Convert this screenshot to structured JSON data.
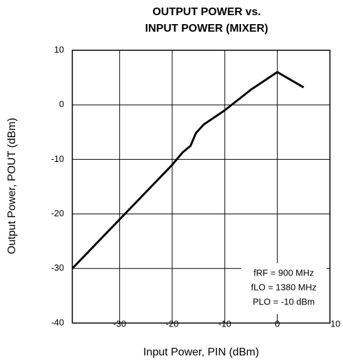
{
  "chart_data": {
    "type": "line",
    "title": [
      "OUTPUT POWER vs.",
      "INPUT POWER (MIXER)"
    ],
    "xlabel": "Input Power, PIN (dBm)",
    "ylabel": "Output Power, POUT (dBm)",
    "annotations": [
      "fRF = 900 MHz",
      "fLO = 1380 MHz",
      "PLO = -10 dBm"
    ],
    "x": [
      -39,
      -20,
      -18,
      -16.5,
      -15.5,
      -14,
      -10,
      -5,
      0,
      5
    ],
    "series": [
      {
        "name": "POUT",
        "color": "#000000",
        "values": [
          -30,
          -11,
          -8.7,
          -7.5,
          -5.2,
          -3.6,
          -1,
          2.8,
          6,
          3.2
        ]
      }
    ],
    "xlim": [
      -39,
      10
    ],
    "xticks": [
      -30,
      -20,
      -10,
      0,
      10
    ],
    "ylim": [
      -40,
      10
    ],
    "yticks": [
      -40,
      -30,
      -20,
      -10,
      0,
      10
    ],
    "grid": true
  }
}
